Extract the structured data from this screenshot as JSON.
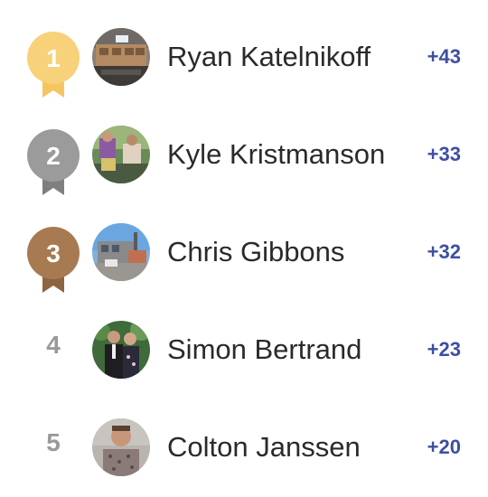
{
  "leaderboard": {
    "entries": [
      {
        "rank": "1",
        "name": "Ryan Katelnikoff",
        "score": "+43",
        "medal": "gold"
      },
      {
        "rank": "2",
        "name": "Kyle Kristmanson",
        "score": "+33",
        "medal": "silver"
      },
      {
        "rank": "3",
        "name": "Chris Gibbons",
        "score": "+32",
        "medal": "bronze"
      },
      {
        "rank": "4",
        "name": "Simon Bertrand",
        "score": "+23",
        "medal": "none"
      },
      {
        "rank": "5",
        "name": "Colton Janssen",
        "score": "+20",
        "medal": "none"
      }
    ]
  },
  "colors": {
    "gold": "#f7d27a",
    "silver": "#9b9b9b",
    "bronze": "#a87a52",
    "score": "#3d4fa1",
    "name": "#2a2a2a",
    "rank_plain": "#9a9a9a"
  }
}
